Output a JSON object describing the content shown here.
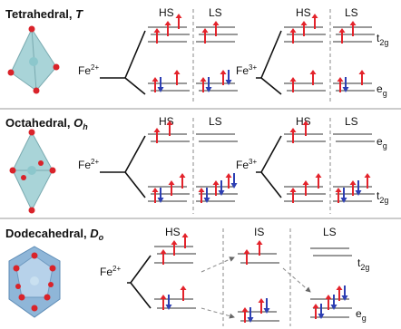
{
  "panels": [
    {
      "title": "Tetrahedral,",
      "symbol": "T",
      "ions": [
        {
          "ion": "Fe",
          "charge": "2+",
          "states": [
            "HS",
            "LS"
          ]
        },
        {
          "ion": "Fe",
          "charge": "3+",
          "states": [
            "HS",
            "LS"
          ]
        }
      ],
      "upper": {
        "base": "t",
        "sub": "2g"
      },
      "lower": {
        "base": "e",
        "sub": "g"
      }
    },
    {
      "title": "Octahedral,",
      "symbol": "O",
      "symbol_sub": "h",
      "ions": [
        {
          "ion": "Fe",
          "charge": "2+",
          "states": [
            "HS",
            "LS"
          ]
        },
        {
          "ion": "Fe",
          "charge": "3+",
          "states": [
            "HS",
            "LS"
          ]
        }
      ],
      "upper": {
        "base": "e",
        "sub": "g"
      },
      "lower": {
        "base": "t",
        "sub": "2g"
      }
    },
    {
      "title": "Dodecahedral,",
      "symbol": "D",
      "symbol_sub": "o",
      "ions": [
        {
          "ion": "Fe",
          "charge": "2+",
          "states": [
            "HS",
            "IS",
            "LS"
          ]
        }
      ],
      "upper": {
        "base": "t",
        "sub": "2g"
      },
      "lower": {
        "base": "e",
        "sub": "g"
      }
    }
  ]
}
